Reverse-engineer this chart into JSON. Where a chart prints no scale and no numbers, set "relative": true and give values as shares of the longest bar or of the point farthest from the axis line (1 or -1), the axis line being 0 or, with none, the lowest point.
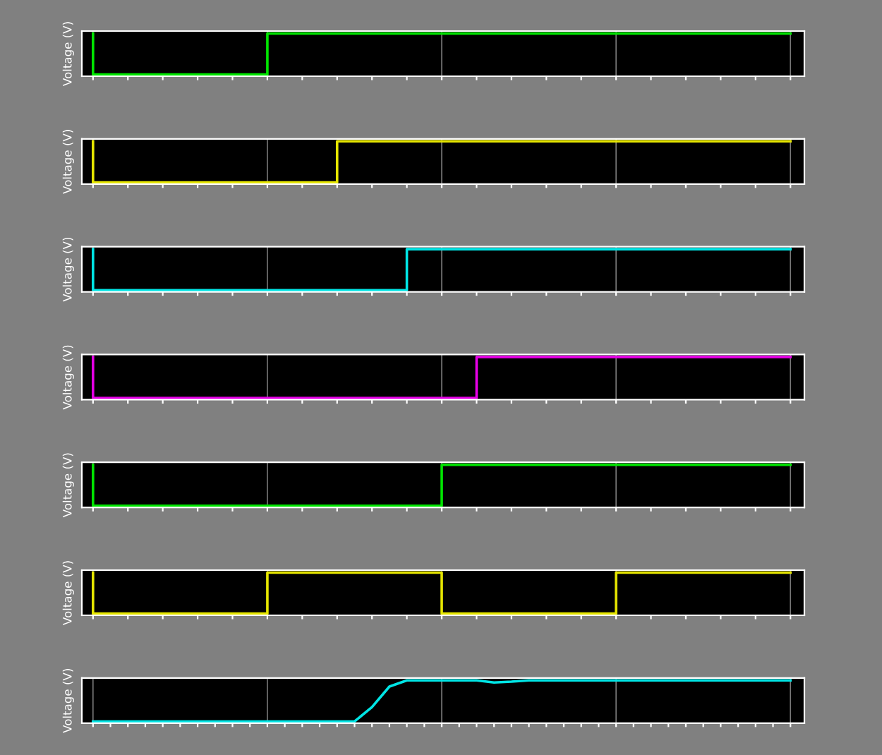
{
  "chart_data": [
    {
      "type": "step",
      "relative": true,
      "ylabel": "Voltage (V)",
      "grid": "x",
      "categories": [
        null,
        null,
        null,
        null,
        null,
        null,
        null,
        null,
        null,
        null,
        null,
        null,
        null,
        null,
        null,
        null,
        null,
        null,
        null,
        null,
        null
      ],
      "series": [
        {
          "color": "#00e600",
          "values": [
            1,
            0,
            0,
            0,
            0,
            0,
            1,
            1,
            1,
            1,
            1,
            1,
            1,
            1,
            1,
            1,
            1,
            1,
            1,
            1,
            1
          ]
        }
      ]
    },
    {
      "type": "step",
      "relative": true,
      "ylabel": "Voltage (V)",
      "grid": "x",
      "categories": [
        null,
        null,
        null,
        null,
        null,
        null,
        null,
        null,
        null,
        null,
        null,
        null,
        null,
        null,
        null,
        null,
        null,
        null,
        null,
        null,
        null
      ],
      "series": [
        {
          "color": "#e6e600",
          "values": [
            1,
            0,
            0,
            0,
            0,
            0,
            0,
            0,
            1,
            1,
            1,
            1,
            1,
            1,
            1,
            1,
            1,
            1,
            1,
            1,
            1
          ]
        }
      ]
    },
    {
      "type": "step",
      "relative": true,
      "ylabel": "Voltage (V)",
      "grid": "x",
      "categories": [
        null,
        null,
        null,
        null,
        null,
        null,
        null,
        null,
        null,
        null,
        null,
        null,
        null,
        null,
        null,
        null,
        null,
        null,
        null,
        null,
        null
      ],
      "series": [
        {
          "color": "#00e5e5",
          "values": [
            1,
            0,
            0,
            0,
            0,
            0,
            0,
            0,
            0,
            0,
            1,
            1,
            1,
            1,
            1,
            1,
            1,
            1,
            1,
            1,
            1
          ]
        }
      ]
    },
    {
      "type": "step",
      "relative": true,
      "ylabel": "Voltage (V)",
      "grid": "x",
      "categories": [
        null,
        null,
        null,
        null,
        null,
        null,
        null,
        null,
        null,
        null,
        null,
        null,
        null,
        null,
        null,
        null,
        null,
        null,
        null,
        null,
        null
      ],
      "series": [
        {
          "color": "#e600e6",
          "values": [
            1,
            0,
            0,
            0,
            0,
            0,
            0,
            0,
            0,
            0,
            0,
            0,
            1,
            1,
            1,
            1,
            1,
            1,
            1,
            1,
            1
          ]
        }
      ]
    },
    {
      "type": "step",
      "relative": true,
      "ylabel": "Voltage (V)",
      "grid": "x",
      "categories": [
        null,
        null,
        null,
        null,
        null,
        null,
        null,
        null,
        null,
        null,
        null,
        null,
        null,
        null,
        null,
        null,
        null,
        null,
        null,
        null,
        null
      ],
      "series": [
        {
          "color": "#00e600",
          "values": [
            1,
            0,
            0,
            0,
            0,
            0,
            0,
            0,
            0,
            0,
            0,
            1,
            1,
            1,
            1,
            1,
            1,
            1,
            1,
            1,
            1
          ]
        }
      ]
    },
    {
      "type": "step",
      "relative": true,
      "ylabel": "Voltage (V)",
      "grid": "x",
      "categories": [
        null,
        null,
        null,
        null,
        null,
        null,
        null,
        null,
        null,
        null,
        null,
        null,
        null,
        null,
        null,
        null,
        null,
        null,
        null,
        null,
        null
      ],
      "series": [
        {
          "color": "#e6e600",
          "values": [
            1,
            0,
            0,
            0,
            0,
            0,
            1,
            1,
            1,
            1,
            1,
            0,
            0,
            0,
            0,
            0,
            1,
            1,
            1,
            1,
            1
          ]
        }
      ]
    },
    {
      "type": "line",
      "relative": true,
      "ylabel": "Voltage (V)",
      "grid": "x",
      "categories": [
        null,
        null,
        null,
        null,
        null,
        null,
        null,
        null,
        null,
        null,
        null,
        null,
        null,
        null,
        null,
        null,
        null,
        null,
        null,
        null,
        null,
        null,
        null,
        null,
        null,
        null,
        null,
        null,
        null,
        null,
        null,
        null,
        null,
        null,
        null,
        null,
        null,
        null,
        null,
        null,
        null
      ],
      "series": [
        {
          "color": "#00e5e5",
          "values": [
            0,
            0,
            0,
            0,
            0,
            0,
            0,
            0,
            0,
            0,
            0,
            0,
            0,
            0,
            0,
            0,
            0.35,
            0.85,
            1,
            1,
            1,
            1,
            1,
            0.95,
            0.97,
            1,
            1,
            1,
            1,
            1,
            1,
            1,
            1,
            1,
            1,
            1,
            1,
            1,
            1,
            1,
            1
          ]
        }
      ]
    }
  ]
}
